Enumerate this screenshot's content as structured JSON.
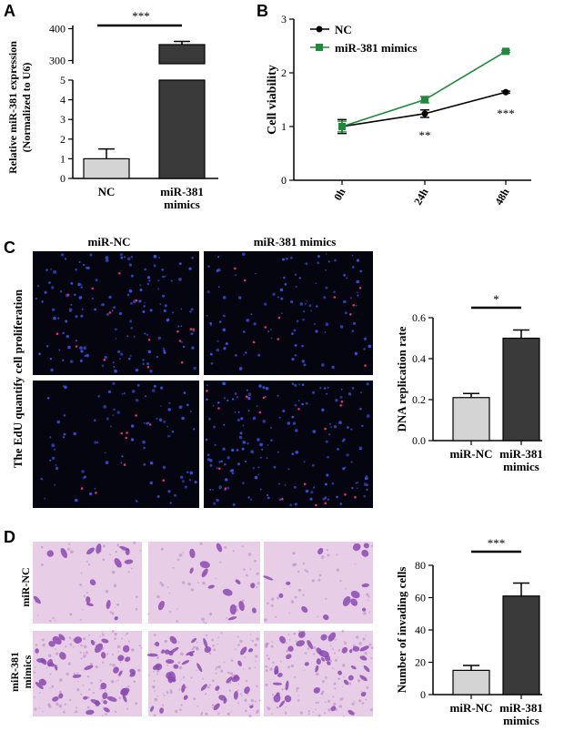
{
  "panels": {
    "A": "A",
    "B": "B",
    "C": "C",
    "D": "D"
  },
  "colors": {
    "nc_bar": "#d4d4d4",
    "mimic_bar": "#3a3a3a",
    "nc_line": "#000000",
    "mimic_line": "#1e8a3a",
    "fluor_bg": "#050510",
    "nuclei": "#3a50e0",
    "edu": "#e0306a",
    "stain_bg": "#e8cde6",
    "stain_cell": "#8a4ab0"
  },
  "chart_data": [
    {
      "id": "A",
      "type": "bar",
      "categories": [
        "NC",
        "miR-381\nmimics"
      ],
      "category_lines": [
        [
          "NC"
        ],
        [
          "miR-381",
          "mimics"
        ]
      ],
      "values": [
        1.0,
        350
      ],
      "errors": [
        0.5,
        10
      ],
      "ylabel": [
        "Relative miR-381 expression",
        "(Normalized to U6)"
      ],
      "broken_axis": {
        "lower_range": [
          0,
          5
        ],
        "lower_ticks": [
          "0",
          "1",
          "2",
          "3",
          "4",
          "5"
        ],
        "upper_range": [
          290,
          410
        ],
        "upper_ticks": [
          "300",
          "400"
        ]
      },
      "significance": "***"
    },
    {
      "id": "B",
      "type": "line",
      "x": [
        "0h",
        "24h",
        "48h"
      ],
      "ylabel": "Cell viability",
      "ylim": [
        0,
        3
      ],
      "yticks": [
        "0",
        "1",
        "2",
        "3"
      ],
      "series": [
        {
          "name": "NC",
          "values": [
            1.0,
            1.24,
            1.64
          ],
          "errors": [
            0.13,
            0.07,
            0.02
          ]
        },
        {
          "name": "miR-381 mimics",
          "values": [
            1.0,
            1.5,
            2.4
          ],
          "errors": [
            0.1,
            0.06,
            0.02
          ]
        }
      ],
      "annotations": {
        "24h": "**",
        "48h": "***"
      },
      "legend": "top-left"
    },
    {
      "id": "C",
      "type": "bar",
      "categories": [
        "miR-NC",
        "miR-381\nmimics"
      ],
      "category_lines": [
        [
          "miR-NC"
        ],
        [
          "miR-381",
          "mimics"
        ]
      ],
      "values": [
        0.21,
        0.5
      ],
      "errors": [
        0.02,
        0.04
      ],
      "ylabel": "DNA replication rate",
      "ylim": [
        0,
        0.6
      ],
      "yticks": [
        "0.0",
        "0.2",
        "0.4",
        "0.6"
      ],
      "significance": "*"
    },
    {
      "id": "D",
      "type": "bar",
      "categories": [
        "miR-NC",
        "miR-381\nmimics"
      ],
      "category_lines": [
        [
          "miR-NC"
        ],
        [
          "miR-381",
          "mimics"
        ]
      ],
      "values": [
        15,
        61
      ],
      "errors": [
        3,
        8
      ],
      "ylabel": "Number of invading cells",
      "ylim": [
        0,
        80
      ],
      "yticks": [
        "0",
        "20",
        "40",
        "60",
        "80"
      ],
      "significance": "***"
    }
  ],
  "images_c": {
    "col_headers": [
      "miR-NC",
      "miR-381 mimics"
    ],
    "side_label": "The EdU quantify cell proliferation"
  },
  "images_d": {
    "row_labels": [
      [
        "miR-NC"
      ],
      [
        "miR-381",
        "mimics"
      ]
    ]
  }
}
